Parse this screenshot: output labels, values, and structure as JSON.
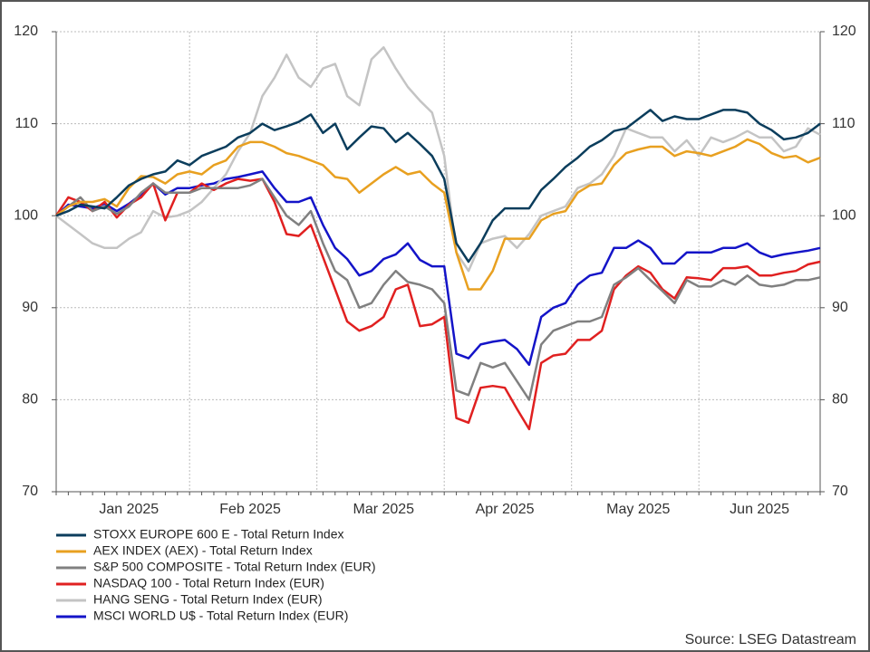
{
  "chart_data": {
    "type": "line",
    "categories": [
      null,
      null,
      null,
      null,
      null,
      null,
      "Jan 2025",
      null,
      null,
      null,
      null,
      null,
      null,
      null,
      null,
      null,
      "Feb 2025",
      null,
      null,
      null,
      null,
      null,
      null,
      null,
      null,
      null,
      null,
      "Mar 2025",
      null,
      null,
      null,
      null,
      null,
      null,
      null,
      null,
      null,
      "Apr 2025",
      null,
      null,
      null,
      null,
      null,
      null,
      null,
      null,
      null,
      null,
      "May 2025",
      null,
      null,
      null,
      null,
      null,
      null,
      null,
      null,
      null,
      "Jun 2025",
      null,
      null,
      null,
      null,
      null
    ],
    "series": [
      {
        "name": "STOXX EUROPE 600 E - Total Return Index",
        "color": "#0b3d5c",
        "values": [
          100,
          100.5,
          101.2,
          101,
          100.8,
          102,
          103.3,
          104,
          104.5,
          104.8,
          106,
          105.5,
          106.5,
          107,
          107.5,
          108.5,
          109,
          110,
          109.3,
          109.7,
          110.2,
          111,
          109,
          110,
          107.2,
          108.5,
          109.7,
          109.5,
          108,
          109,
          107.8,
          106.5,
          104,
          97,
          95,
          97,
          99.5,
          100.8,
          100.8,
          100.8,
          102.8,
          104,
          105.3,
          106.3,
          107.5,
          108.2,
          109.2,
          109.5,
          110.5,
          111.5,
          110.3,
          110.8,
          110.5,
          110.5,
          111,
          111.5,
          111.5,
          111.2,
          110,
          109.3,
          108.3,
          108.5,
          109,
          110
        ]
      },
      {
        "name": "AEX INDEX (AEX) - Total Return Index",
        "color": "#e8a020",
        "values": [
          100,
          101,
          101.5,
          101.5,
          101.8,
          101,
          103,
          104.3,
          104.2,
          103.5,
          104.5,
          104.8,
          104.5,
          105.5,
          106,
          107.5,
          108,
          108,
          107.5,
          106.8,
          106.5,
          106,
          105.5,
          104.2,
          104,
          102.5,
          103.5,
          104.5,
          105.3,
          104.5,
          104.8,
          103.5,
          102.5,
          96,
          92,
          92,
          94,
          97.5,
          97.5,
          97.5,
          99.5,
          100.2,
          100.5,
          102.5,
          103.3,
          103.5,
          105.5,
          106.8,
          107.2,
          107.5,
          107.5,
          106.5,
          107,
          106.8,
          106.5,
          107,
          107.5,
          108.3,
          107.8,
          106.8,
          106.3,
          106.5,
          105.8,
          106.3
        ]
      },
      {
        "name": "S&P 500 COMPOSITE - Total Return Index (EUR)",
        "color": "#808080",
        "values": [
          100,
          101,
          102,
          100.5,
          101,
          100.2,
          101,
          102.5,
          103.5,
          102.5,
          102.5,
          102.5,
          103,
          103,
          103,
          103,
          103.3,
          104,
          102,
          100,
          99,
          100.5,
          97,
          94,
          93,
          90,
          90.5,
          92.5,
          94,
          92.8,
          92.5,
          92,
          90.5,
          81,
          80.5,
          84,
          83.5,
          84,
          82,
          80,
          86,
          87.5,
          88,
          88.5,
          88.5,
          89,
          92.5,
          93.3,
          94.3,
          93,
          91.8,
          90.5,
          93,
          92.3,
          92.3,
          93,
          92.5,
          93.5,
          92.5,
          92.3,
          92.5,
          93,
          93,
          93.3
        ]
      },
      {
        "name": "NASDAQ 100 - Total Return Index (EUR)",
        "color": "#e02020",
        "values": [
          100,
          102,
          101.5,
          100.5,
          101.5,
          99.8,
          101.2,
          102,
          103.5,
          99.5,
          102.5,
          102.5,
          103.5,
          102.8,
          103.5,
          104,
          103.8,
          104,
          101.5,
          98,
          97.8,
          99,
          95.5,
          92,
          88.5,
          87.5,
          88,
          89,
          92,
          92.5,
          88,
          88.2,
          89,
          78,
          77.5,
          81.3,
          81.5,
          81.3,
          79,
          76.8,
          84,
          84.8,
          85,
          86.5,
          86.5,
          87.5,
          92,
          93.5,
          94.5,
          93.8,
          92,
          91,
          93.3,
          93.2,
          93,
          94.3,
          94.3,
          94.5,
          93.5,
          93.5,
          93.8,
          94,
          94.7,
          95
        ]
      },
      {
        "name": "HANG SENG - Total Return Index (EUR)",
        "color": "#c4c4c4",
        "values": [
          100,
          99,
          98,
          97,
          96.5,
          96.5,
          97.5,
          98.2,
          100.5,
          99.8,
          100,
          100.5,
          101.5,
          103,
          104.5,
          107,
          109,
          113,
          115,
          117.5,
          115,
          114,
          116,
          116.5,
          113,
          112,
          117,
          118.3,
          116,
          114,
          112.5,
          111.2,
          106.5,
          96,
          94,
          97,
          97.5,
          97.8,
          96.5,
          98,
          100,
          100.5,
          101,
          103,
          103.5,
          104.5,
          106.5,
          109.5,
          109,
          108.5,
          108.5,
          107,
          108.2,
          106.5,
          108.5,
          108,
          108.5,
          109.2,
          108.5,
          108.5,
          107,
          107.5,
          109.5,
          108.8
        ]
      },
      {
        "name": "MSCI WORLD U$ - Total Return Index (EUR)",
        "color": "#1414c8",
        "values": [
          100,
          101.2,
          101,
          100.8,
          101.3,
          100.5,
          101.3,
          102.3,
          103.5,
          102.3,
          103,
          103,
          103.3,
          103.5,
          104,
          104.2,
          104.5,
          104.8,
          103,
          101.5,
          101.5,
          102,
          99,
          96.5,
          95.3,
          93.5,
          94,
          95.3,
          95.8,
          97,
          95.2,
          94.5,
          94.5,
          85,
          84.5,
          86,
          86.3,
          86.5,
          85.5,
          83.8,
          89,
          90,
          90.5,
          92.5,
          93.5,
          93.8,
          96.5,
          96.5,
          97.3,
          96.5,
          94.8,
          94.8,
          96,
          96,
          96,
          96.5,
          96.5,
          97,
          96,
          95.5,
          95.8,
          96,
          96.2,
          96.5
        ]
      }
    ],
    "ylim": [
      70,
      120
    ],
    "yticks": [
      70,
      80,
      90,
      100,
      110,
      120
    ],
    "y2lim": [
      70,
      120
    ],
    "y2ticks": [
      70,
      80,
      90,
      100,
      110,
      120
    ],
    "grid": true,
    "legend": "bottom-left",
    "source": "Source: LSEG Datastream"
  }
}
